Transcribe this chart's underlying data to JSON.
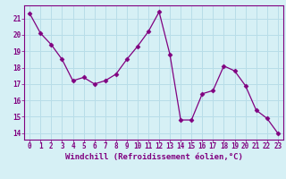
{
  "x": [
    0,
    1,
    2,
    3,
    4,
    5,
    6,
    7,
    8,
    9,
    10,
    11,
    12,
    13,
    14,
    15,
    16,
    17,
    18,
    19,
    20,
    21,
    22,
    23
  ],
  "y": [
    21.3,
    20.1,
    19.4,
    18.5,
    17.2,
    17.4,
    17.0,
    17.2,
    17.6,
    18.5,
    19.3,
    20.2,
    21.4,
    18.8,
    14.8,
    14.8,
    16.4,
    16.6,
    18.1,
    17.8,
    16.9,
    15.4,
    14.9,
    14.0
  ],
  "line_color": "#800080",
  "marker": "D",
  "markersize": 2.5,
  "linewidth": 0.9,
  "xlabel": "Windchill (Refroidissement éolien,°C)",
  "xlabel_fontsize": 6.5,
  "xlabel_color": "#800080",
  "xlabel_fontweight": "bold",
  "xtick_labels": [
    "0",
    "1",
    "2",
    "3",
    "4",
    "5",
    "6",
    "7",
    "8",
    "9",
    "10",
    "11",
    "12",
    "13",
    "14",
    "15",
    "16",
    "17",
    "18",
    "19",
    "20",
    "21",
    "22",
    "23"
  ],
  "ytick_values": [
    14,
    15,
    16,
    17,
    18,
    19,
    20,
    21
  ],
  "ylim": [
    13.6,
    21.8
  ],
  "xlim": [
    -0.5,
    23.5
  ],
  "bg_color": "#d6f0f5",
  "grid_color": "#b8dde8",
  "tick_color": "#800080",
  "tick_fontsize": 5.5,
  "tick_fontcolor": "#800080"
}
